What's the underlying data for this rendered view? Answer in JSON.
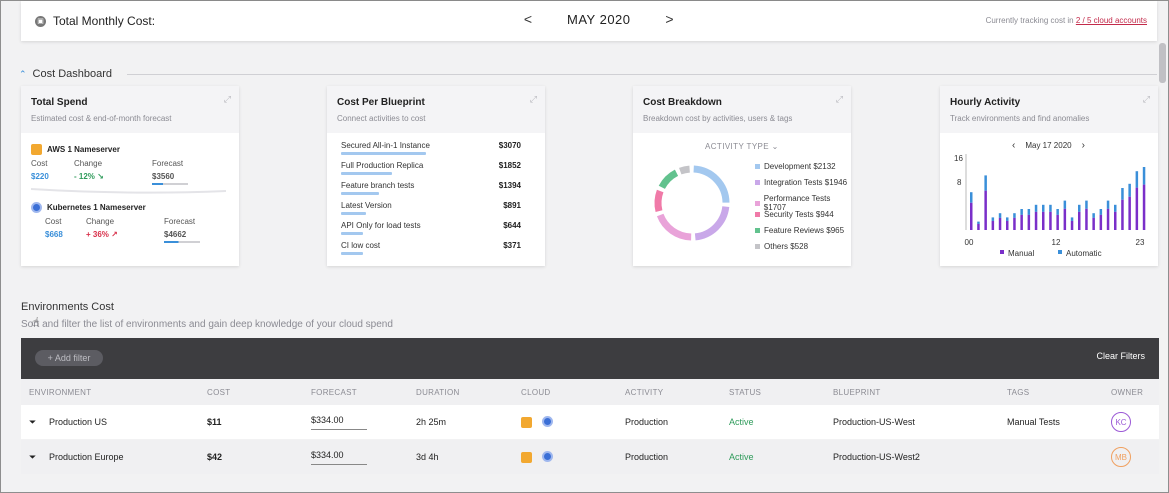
{
  "topbar": {
    "title": "Total Monthly Cost:",
    "month": "MAY 2020",
    "prev": "<",
    "next": ">",
    "tracking_prefix": "Currently tracking cost in",
    "tracking_link": "2 / 5 cloud accounts"
  },
  "dashboard": {
    "section_title": "Cost Dashboard",
    "total_spend": {
      "title": "Total Spend",
      "subtitle": "Estimated cost & end-of-month forecast",
      "items": [
        {
          "name": "AWS 1 Nameserver",
          "cost_label": "Cost",
          "change_label": "Change",
          "forecast_label": "Forecast",
          "cost": "$220",
          "change": "- 12%",
          "change_arrow": "↘",
          "forecast": "$3560"
        },
        {
          "name": "Kubernetes 1 Nameserver",
          "cost_label": "Cost",
          "change_label": "Change",
          "forecast_label": "Forecast",
          "cost": "$668",
          "change": "+ 36%",
          "change_arrow": "↗",
          "forecast": "$4662"
        }
      ]
    },
    "cost_per_blueprint": {
      "title": "Cost Per Blueprint",
      "subtitle": "Connect activities to cost",
      "rows": [
        {
          "name": "Secured All-in-1 Instance",
          "value": "$3070",
          "share": 1.0
        },
        {
          "name": "Full Production Replica",
          "value": "$1852",
          "share": 0.6
        },
        {
          "name": "Feature branch tests",
          "value": "$1394",
          "share": 0.45
        },
        {
          "name": "Latest Version",
          "value": "$891",
          "share": 0.29
        },
        {
          "name": "API Only for load tests",
          "value": "$644",
          "share": 0.21
        },
        {
          "name": "CI low cost",
          "value": "$371",
          "share": 0.12
        }
      ]
    },
    "cost_breakdown": {
      "title": "Cost Breakdown",
      "subtitle": "Breakdown cost by activities, users & tags",
      "selector": "ACTIVITY TYPE",
      "legend": [
        {
          "label": "Development $2132",
          "color": "#a3c8ef"
        },
        {
          "label": "Integration Tests $1946",
          "color": "#c9a8e9"
        },
        {
          "label": "Performance Tests $1707",
          "color": "#e9a3d9"
        },
        {
          "label": "Security Tests $944",
          "color": "#f07aa8"
        },
        {
          "label": "Feature Reviews $965",
          "color": "#62c28e"
        },
        {
          "label": "Others $528",
          "color": "#c4c4c8"
        }
      ]
    },
    "hourly_activity": {
      "title": "Hourly Activity",
      "subtitle": "Track environments and find anomalies",
      "date": "May 17 2020",
      "y_ticks": [
        "16",
        "8"
      ],
      "x_ticks": [
        "00",
        "12",
        "23"
      ],
      "legend_manual": "Manual",
      "legend_automatic": "Automatic",
      "manual_color": "#7a2fc9",
      "automatic_color": "#3a8fd9"
    }
  },
  "environments": {
    "title": "Environments Cost",
    "subtitle": "Sort and filter the list of environments and gain deep knowledge of your cloud spend",
    "add_filter": "+ Add filter",
    "clear_filters": "Clear Filters",
    "columns": [
      "ENVIRONMENT",
      "COST",
      "FORECAST",
      "DURATION",
      "CLOUD",
      "ACTIVITY",
      "STATUS",
      "BLUEPRINT",
      "TAGS",
      "OWNER"
    ],
    "rows": [
      {
        "environment": "Production US",
        "cost": "$11",
        "forecast": "$334.00",
        "duration": "2h 25m",
        "activity": "Production",
        "status": "Active",
        "blueprint": "Production-US-West",
        "tags": "Manual Tests",
        "owner": "KC",
        "owner_color": "#9b59d6"
      },
      {
        "environment": "Production Europe",
        "cost": "$42",
        "forecast": "$334.00",
        "duration": "3d 4h",
        "activity": "Production",
        "status": "Active",
        "blueprint": "Production-US-West2",
        "tags": "",
        "owner": "MB",
        "owner_color": "#f0a060"
      }
    ]
  }
}
